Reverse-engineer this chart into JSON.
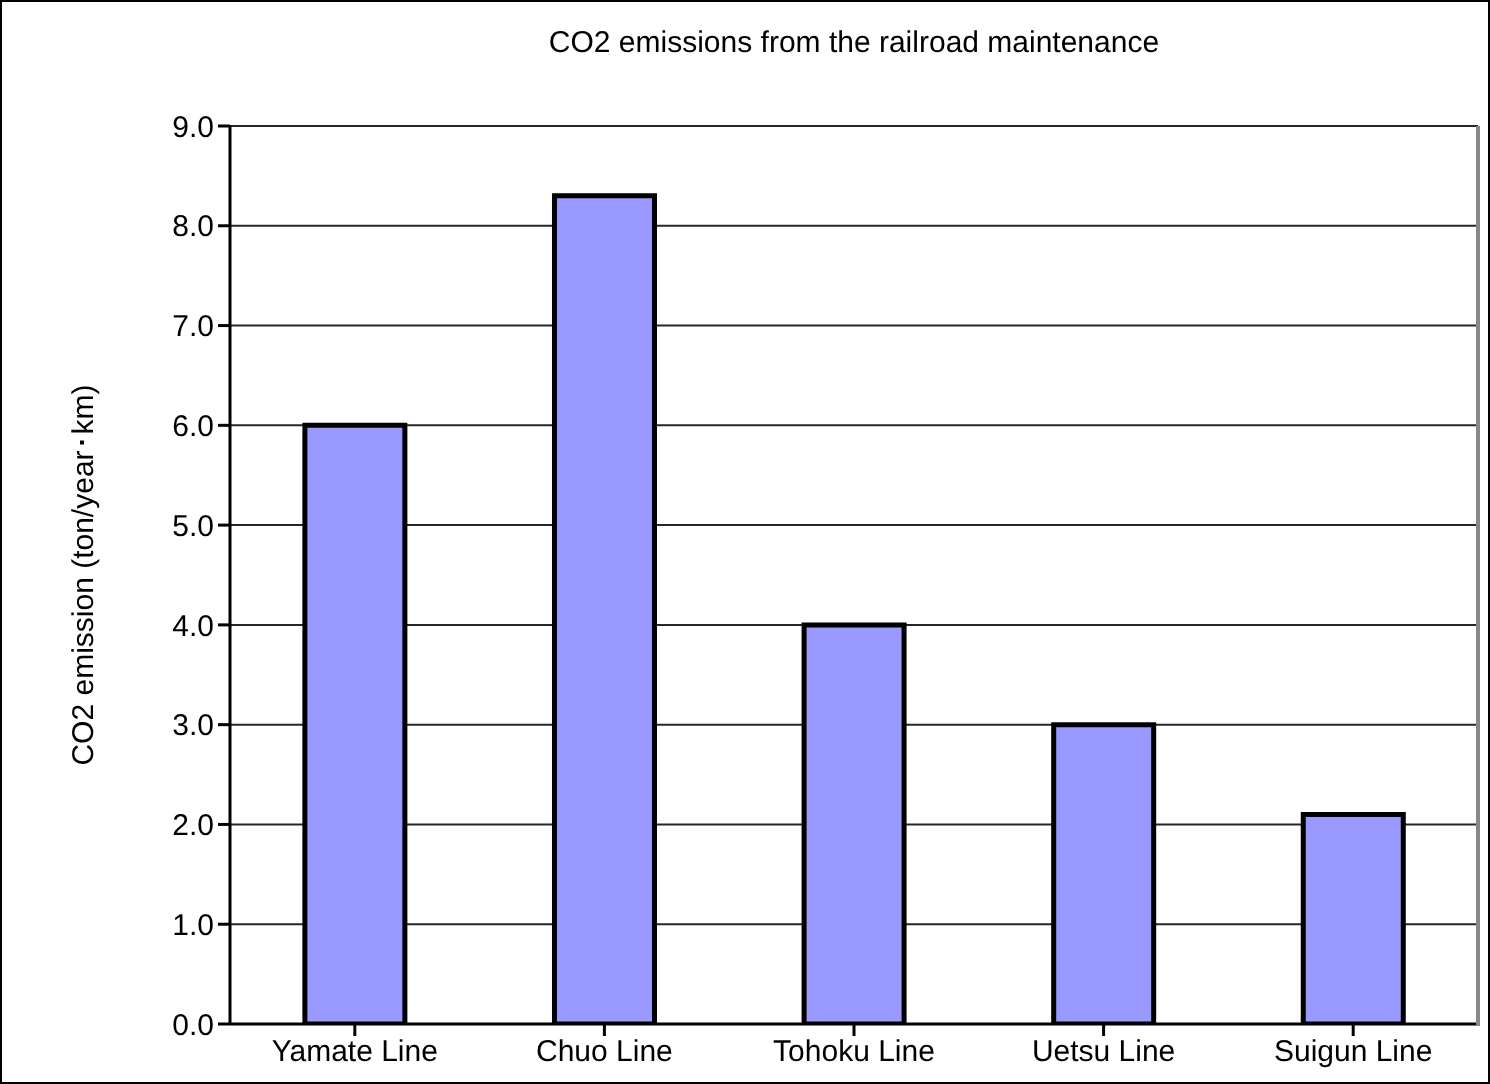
{
  "chart_data": {
    "type": "bar",
    "title": "CO2 emissions from the railroad maintenance",
    "ylabel": "CO2 emission (ton/year･km)",
    "categories": [
      "Yamate Line",
      "Chuo Line",
      "Tohoku Line",
      "Uetsu Line",
      "Suigun Line"
    ],
    "values": [
      6.0,
      8.3,
      4.0,
      3.0,
      2.1
    ],
    "color": "#9999ff",
    "ylim": [
      0,
      9
    ],
    "yticks": [
      {
        "value": 0,
        "label": "0.0"
      },
      {
        "value": 1,
        "label": "1.0"
      },
      {
        "value": 2,
        "label": "2.0"
      },
      {
        "value": 3,
        "label": "3.0"
      },
      {
        "value": 4,
        "label": "4.0"
      },
      {
        "value": 5,
        "label": "5.0"
      },
      {
        "value": 6,
        "label": "6.0"
      },
      {
        "value": 7,
        "label": "7.0"
      },
      {
        "value": 8,
        "label": "8.0"
      },
      {
        "value": 9,
        "label": "9.0"
      }
    ],
    "grid": "y"
  }
}
